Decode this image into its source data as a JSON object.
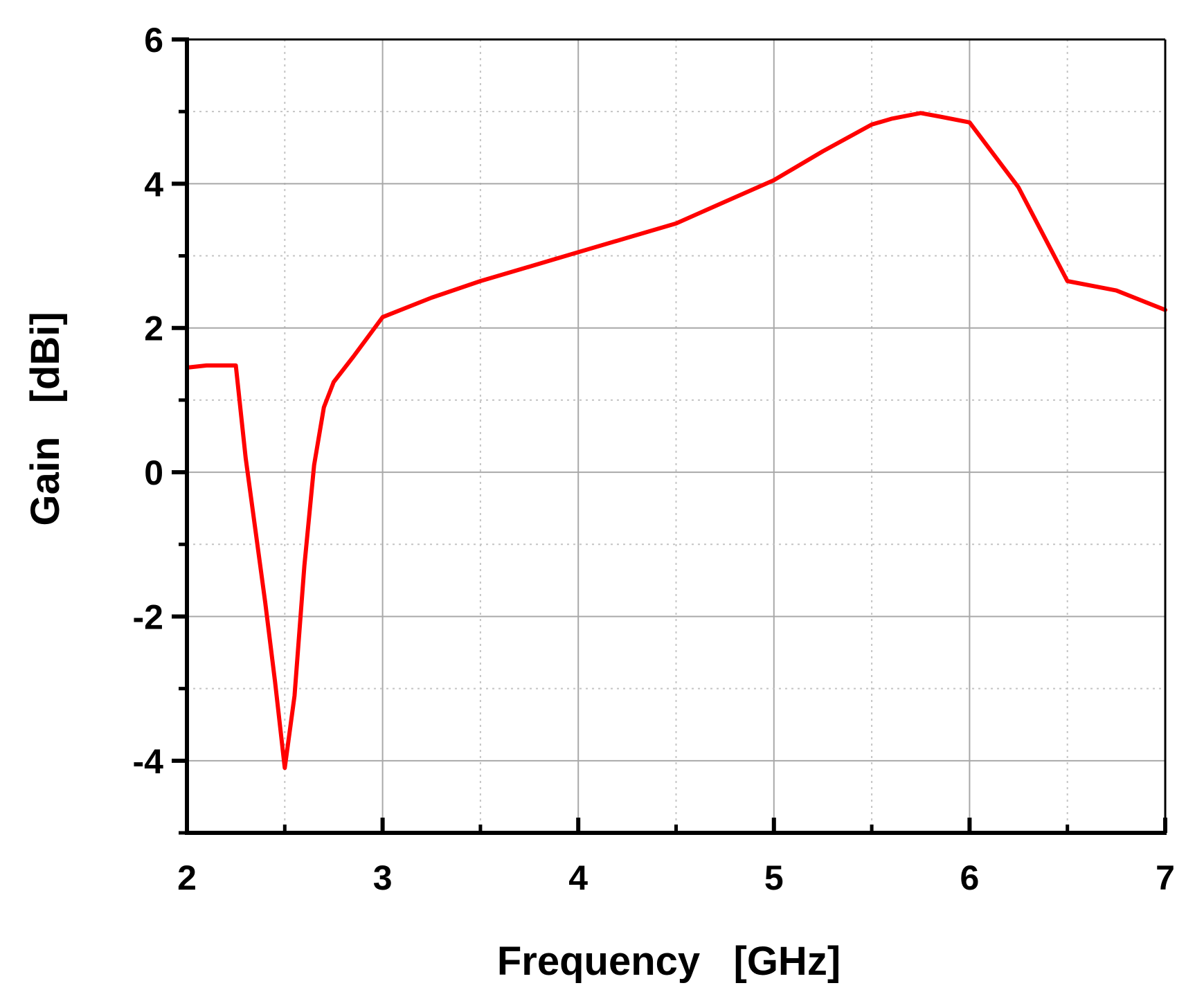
{
  "chart_data": {
    "type": "line",
    "title": "",
    "xlabel": "Frequency   [GHz]",
    "ylabel": "Gain   [dBi]",
    "xlim": [
      2,
      7
    ],
    "ylim": [
      -5,
      6
    ],
    "xticks": [
      2,
      3,
      4,
      5,
      6,
      7
    ],
    "yticks": [
      -4,
      -2,
      0,
      2,
      4,
      6
    ],
    "x_minor_step": 0.5,
    "y_minor_step": 1,
    "grid": true,
    "series": [
      {
        "color": "#ff0000",
        "x": [
          2.0,
          2.1,
          2.25,
          2.3,
          2.4,
          2.45,
          2.5,
          2.55,
          2.6,
          2.65,
          2.7,
          2.75,
          2.85,
          3.0,
          3.25,
          3.5,
          3.75,
          4.0,
          4.25,
          4.5,
          4.75,
          5.0,
          5.25,
          5.5,
          5.6,
          5.75,
          5.85,
          6.0,
          6.25,
          6.5,
          6.75,
          7.0
        ],
        "y": [
          1.45,
          1.48,
          1.48,
          0.2,
          -1.8,
          -2.9,
          -4.1,
          -3.1,
          -1.3,
          0.1,
          0.9,
          1.25,
          1.6,
          2.15,
          2.42,
          2.65,
          2.85,
          3.05,
          3.25,
          3.45,
          3.75,
          4.05,
          4.45,
          4.82,
          4.9,
          4.98,
          4.93,
          4.85,
          3.95,
          2.65,
          2.52,
          2.25
        ]
      }
    ]
  }
}
